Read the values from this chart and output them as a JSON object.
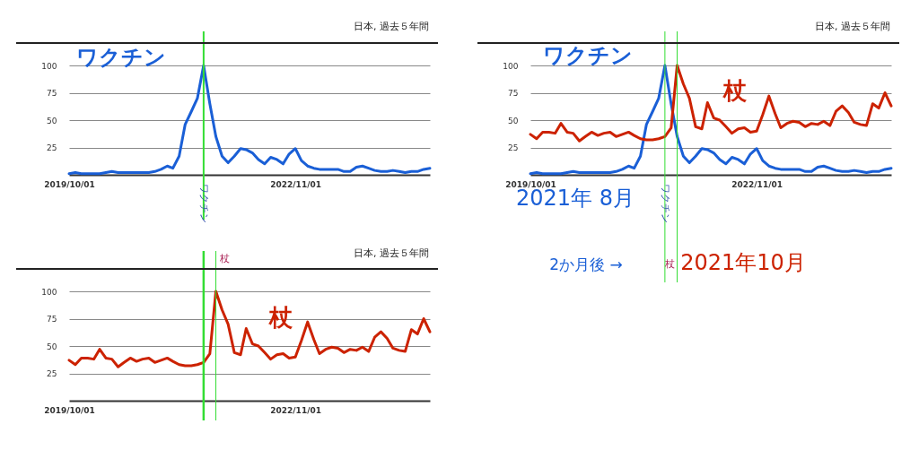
{
  "chart_data": [
    {
      "type": "line",
      "x": [
        "2019-10",
        "2019-11",
        "2019-12",
        "2020-01",
        "2020-02",
        "2020-03",
        "2020-04",
        "2020-05",
        "2020-06",
        "2020-07",
        "2020-08",
        "2020-09",
        "2020-10",
        "2020-11",
        "2020-12",
        "2021-01",
        "2021-02",
        "2021-03",
        "2021-04",
        "2021-05",
        "2021-06",
        "2021-07",
        "2021-08",
        "2021-09",
        "2021-10",
        "2021-11",
        "2021-12",
        "2022-01",
        "2022-02",
        "2022-03",
        "2022-04",
        "2022-05",
        "2022-06",
        "2022-07",
        "2022-08",
        "2022-09",
        "2022-10",
        "2022-11",
        "2022-12",
        "2023-01",
        "2023-02",
        "2023-03",
        "2023-04",
        "2023-05",
        "2023-06",
        "2023-07",
        "2023-08",
        "2023-09",
        "2023-10",
        "2023-11",
        "2023-12",
        "2024-01",
        "2024-02",
        "2024-03",
        "2024-04",
        "2024-05",
        "2024-06",
        "2024-07",
        "2024-08",
        "2024-09"
      ],
      "series": [
        {
          "name": "ワクチン",
          "color": "#1a5fd6",
          "values": [
            1,
            2,
            1,
            1,
            1,
            1,
            2,
            3,
            2,
            2,
            2,
            2,
            2,
            2,
            3,
            5,
            8,
            6,
            17,
            46,
            58,
            70,
            100,
            65,
            35,
            17,
            11,
            17,
            24,
            23,
            20,
            14,
            10,
            16,
            14,
            10,
            19,
            24,
            13,
            8,
            6,
            5,
            5,
            5,
            5,
            3,
            3,
            7,
            8,
            6,
            4,
            3,
            3,
            4,
            3,
            2,
            3,
            3,
            5,
            6
          ]
        }
      ],
      "xlim": [
        "2019-10",
        "2024-09"
      ],
      "ylim": [
        0,
        100
      ],
      "yticks": [
        25,
        50,
        75,
        100
      ],
      "xticks": [
        {
          "value": "2019-10-01",
          "label": "2019/10/01"
        },
        {
          "value": "2022-11-01",
          "label": "2022/11/01"
        }
      ],
      "grid": "y",
      "line_style": "solid",
      "ref_lines": [
        {
          "axis": "x",
          "value": "2021-08",
          "label": "ワクチン",
          "color": "#33dd33"
        }
      ],
      "annotations": [
        "日本, 過去５年間"
      ]
    },
    {
      "type": "line",
      "x": [
        "2019-10",
        "2019-11",
        "2019-12",
        "2020-01",
        "2020-02",
        "2020-03",
        "2020-04",
        "2020-05",
        "2020-06",
        "2020-07",
        "2020-08",
        "2020-09",
        "2020-10",
        "2020-11",
        "2020-12",
        "2021-01",
        "2021-02",
        "2021-03",
        "2021-04",
        "2021-05",
        "2021-06",
        "2021-07",
        "2021-08",
        "2021-09",
        "2021-10",
        "2021-11",
        "2021-12",
        "2022-01",
        "2022-02",
        "2022-03",
        "2022-04",
        "2022-05",
        "2022-06",
        "2022-07",
        "2022-08",
        "2022-09",
        "2022-10",
        "2022-11",
        "2022-12",
        "2023-01",
        "2023-02",
        "2023-03",
        "2023-04",
        "2023-05",
        "2023-06",
        "2023-07",
        "2023-08",
        "2023-09",
        "2023-10",
        "2023-11",
        "2023-12",
        "2024-01",
        "2024-02",
        "2024-03",
        "2024-04",
        "2024-05",
        "2024-06",
        "2024-07",
        "2024-08",
        "2024-09"
      ],
      "series": [
        {
          "name": "杖",
          "color": "#cc2200",
          "values": [
            37,
            33,
            39,
            39,
            38,
            47,
            39,
            38,
            31,
            35,
            39,
            36,
            38,
            39,
            35,
            37,
            39,
            36,
            33,
            32,
            32,
            33,
            35,
            43,
            100,
            83,
            70,
            44,
            42,
            66,
            52,
            50,
            44,
            38,
            42,
            43,
            39,
            40,
            55,
            72,
            56,
            43,
            47,
            49,
            48,
            44,
            47,
            46,
            49,
            45,
            58,
            63,
            57,
            48,
            46,
            45,
            65,
            61,
            75,
            63
          ]
        }
      ],
      "xlim": [
        "2019-10",
        "2024-09"
      ],
      "ylim": [
        0,
        100
      ],
      "yticks": [
        25,
        50,
        75,
        100
      ],
      "xticks": [
        {
          "value": "2019-10-01",
          "label": "2019/10/01"
        },
        {
          "value": "2022-11-01",
          "label": "2022/11/01"
        }
      ],
      "grid": "y",
      "line_style": "solid",
      "ref_lines": [
        {
          "axis": "x",
          "value": "2021-08",
          "label": null,
          "color": "#33dd33"
        },
        {
          "axis": "x",
          "value": "2021-10",
          "label": "杖",
          "color": "#33dd33"
        }
      ],
      "annotations": [
        "日本, 過去５年間"
      ]
    },
    {
      "type": "line",
      "x": [
        "2019-10",
        "2019-11",
        "2019-12",
        "2020-01",
        "2020-02",
        "2020-03",
        "2020-04",
        "2020-05",
        "2020-06",
        "2020-07",
        "2020-08",
        "2020-09",
        "2020-10",
        "2020-11",
        "2020-12",
        "2021-01",
        "2021-02",
        "2021-03",
        "2021-04",
        "2021-05",
        "2021-06",
        "2021-07",
        "2021-08",
        "2021-09",
        "2021-10",
        "2021-11",
        "2021-12",
        "2022-01",
        "2022-02",
        "2022-03",
        "2022-04",
        "2022-05",
        "2022-06",
        "2022-07",
        "2022-08",
        "2022-09",
        "2022-10",
        "2022-11",
        "2022-12",
        "2023-01",
        "2023-02",
        "2023-03",
        "2023-04",
        "2023-05",
        "2023-06",
        "2023-07",
        "2023-08",
        "2023-09",
        "2023-10",
        "2023-11",
        "2023-12",
        "2024-01",
        "2024-02",
        "2024-03",
        "2024-04",
        "2024-05",
        "2024-06",
        "2024-07",
        "2024-08",
        "2024-09"
      ],
      "series": [
        {
          "name": "ワクチン",
          "color": "#1a5fd6",
          "values": [
            1,
            2,
            1,
            1,
            1,
            1,
            2,
            3,
            2,
            2,
            2,
            2,
            2,
            2,
            3,
            5,
            8,
            6,
            17,
            46,
            58,
            70,
            100,
            65,
            35,
            17,
            11,
            17,
            24,
            23,
            20,
            14,
            10,
            16,
            14,
            10,
            19,
            24,
            13,
            8,
            6,
            5,
            5,
            5,
            5,
            3,
            3,
            7,
            8,
            6,
            4,
            3,
            3,
            4,
            3,
            2,
            3,
            3,
            5,
            6
          ]
        },
        {
          "name": "杖",
          "color": "#cc2200",
          "values": [
            37,
            33,
            39,
            39,
            38,
            47,
            39,
            38,
            31,
            35,
            39,
            36,
            38,
            39,
            35,
            37,
            39,
            36,
            33,
            32,
            32,
            33,
            35,
            43,
            100,
            83,
            70,
            44,
            42,
            66,
            52,
            50,
            44,
            38,
            42,
            43,
            39,
            40,
            55,
            72,
            56,
            43,
            47,
            49,
            48,
            44,
            47,
            46,
            49,
            45,
            58,
            63,
            57,
            48,
            46,
            45,
            65,
            61,
            75,
            63
          ]
        }
      ],
      "xlim": [
        "2019-10",
        "2024-09"
      ],
      "ylim": [
        0,
        100
      ],
      "yticks": [
        25,
        50,
        75,
        100
      ],
      "xticks": [
        {
          "value": "2019-10-01",
          "label": "2019/10/01"
        },
        {
          "value": "2022-11-01",
          "label": "2022/11/01"
        }
      ],
      "grid": "y",
      "line_style": "solid",
      "ref_lines": [
        {
          "axis": "x",
          "value": "2021-08",
          "label": "ワクチン",
          "color": "#33dd33"
        },
        {
          "axis": "x",
          "value": "2021-10",
          "label": "杖",
          "color": "#33dd33"
        }
      ],
      "annotations": [
        "日本, 過去５年間",
        "2021年 8月",
        "2か月後 →",
        "2021年10月"
      ]
    }
  ]
}
